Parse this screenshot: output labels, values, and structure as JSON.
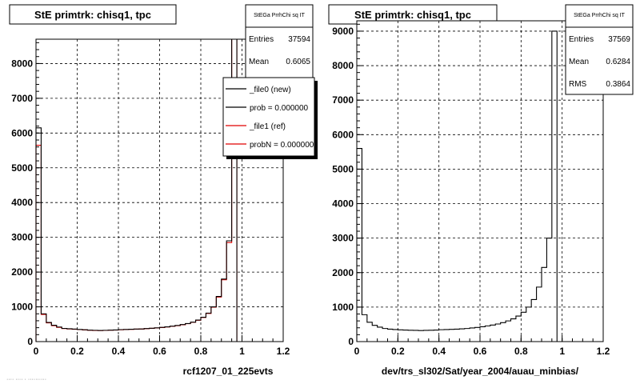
{
  "footer_text": "···· ···· · ··········",
  "left_panel": {
    "title": "StE primtrk: chisq1, tpc",
    "xlabel": "rcf1207_01_225evts",
    "stats": {
      "name": "StEGa PrrhChi sq IT",
      "rows": [
        {
          "label": "Entries",
          "value": "37594"
        },
        {
          "label": "Mean",
          "value": "0.6065"
        }
      ]
    },
    "legend": [
      {
        "label": "_file0 (new)"
      },
      {
        "label": "prob = 0.000000"
      },
      {
        "label": "_file1 (ref)"
      },
      {
        "label": "probN = 0.000000"
      }
    ]
  },
  "right_panel": {
    "title": "StE primtrk: chisq1, tpc",
    "xlabel": "dev/trs_sl302/Sat/year_2004/auau_minbias/",
    "stats": {
      "name": "StEGa PrrhChi sq IT",
      "rows": [
        {
          "label": "Entries",
          "value": "37569"
        },
        {
          "label": "Mean",
          "value": "0.6284"
        },
        {
          "label": "RMS",
          "value": "0.3864"
        }
      ]
    }
  },
  "colors": {
    "new": "#000000",
    "ref": "#e00000"
  },
  "chart_data": [
    {
      "type": "bar",
      "title": "StE primtrk: chisq1, tpc",
      "xlabel": "rcf1207_01_225evts",
      "ylabel": "",
      "xlim": [
        0,
        1.2
      ],
      "ylim": [
        0,
        8700
      ],
      "xticks": [
        0,
        0.2,
        0.4,
        0.6,
        0.8,
        1,
        1.2
      ],
      "yticks": [
        0,
        1000,
        2000,
        3000,
        4000,
        5000,
        6000,
        7000,
        8000
      ],
      "grid": true,
      "legend_position": "top-right",
      "bin_width": 0.025,
      "x": [
        0.0125,
        0.0375,
        0.0625,
        0.0875,
        0.1125,
        0.1375,
        0.1625,
        0.1875,
        0.2125,
        0.2375,
        0.2625,
        0.2875,
        0.3125,
        0.3375,
        0.3625,
        0.3875,
        0.4125,
        0.4375,
        0.4625,
        0.4875,
        0.5125,
        0.5375,
        0.5625,
        0.5875,
        0.6125,
        0.6375,
        0.6625,
        0.6875,
        0.7125,
        0.7375,
        0.7625,
        0.7875,
        0.8125,
        0.8375,
        0.8625,
        0.8875,
        0.9125,
        0.9375,
        0.9625,
        0.9875,
        1.0125
      ],
      "series": [
        {
          "name": "_file0 (new)",
          "values": [
            6150,
            800,
            550,
            470,
            420,
            380,
            370,
            360,
            350,
            340,
            330,
            325,
            320,
            325,
            330,
            335,
            345,
            350,
            355,
            360,
            365,
            375,
            385,
            395,
            410,
            425,
            445,
            465,
            490,
            520,
            560,
            620,
            700,
            820,
            1000,
            1300,
            1800,
            2900,
            8700,
            0,
            0
          ]
        },
        {
          "name": "_file1 (ref)",
          "values": [
            5650,
            780,
            540,
            460,
            410,
            375,
            365,
            355,
            345,
            335,
            325,
            320,
            318,
            322,
            328,
            332,
            340,
            348,
            352,
            358,
            362,
            372,
            382,
            392,
            405,
            420,
            440,
            460,
            485,
            515,
            555,
            615,
            695,
            810,
            990,
            1280,
            1780,
            2850,
            8700,
            0,
            0
          ]
        }
      ]
    },
    {
      "type": "bar",
      "title": "StE primtrk: chisq1, tpc",
      "xlabel": "dev/trs_sl302/Sat/year_2004/auau_minbias/",
      "ylabel": "",
      "xlim": [
        0,
        1.2
      ],
      "ylim": [
        0,
        9300
      ],
      "xticks": [
        0,
        0.2,
        0.4,
        0.6,
        0.8,
        1,
        1.2
      ],
      "yticks": [
        0,
        1000,
        2000,
        3000,
        4000,
        5000,
        6000,
        7000,
        8000,
        9000
      ],
      "grid": true,
      "bin_width": 0.025,
      "x": [
        0.0125,
        0.0375,
        0.0625,
        0.0875,
        0.1125,
        0.1375,
        0.1625,
        0.1875,
        0.2125,
        0.2375,
        0.2625,
        0.2875,
        0.3125,
        0.3375,
        0.3625,
        0.3875,
        0.4125,
        0.4375,
        0.4625,
        0.4875,
        0.5125,
        0.5375,
        0.5625,
        0.5875,
        0.6125,
        0.6375,
        0.6625,
        0.6875,
        0.7125,
        0.7375,
        0.7625,
        0.7875,
        0.8125,
        0.8375,
        0.8625,
        0.8875,
        0.9125,
        0.9375,
        0.9625,
        0.9875,
        1.0125
      ],
      "series": [
        {
          "name": "",
          "values": [
            5600,
            780,
            560,
            470,
            420,
            380,
            360,
            350,
            340,
            335,
            330,
            325,
            320,
            325,
            330,
            335,
            345,
            350,
            355,
            360,
            370,
            380,
            395,
            410,
            430,
            455,
            480,
            510,
            550,
            600,
            660,
            740,
            850,
            1000,
            1220,
            1580,
            2150,
            3000,
            9000,
            0,
            0
          ]
        }
      ]
    }
  ]
}
